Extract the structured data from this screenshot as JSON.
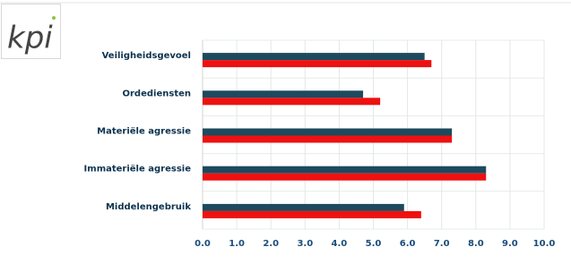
{
  "logo": "kpi",
  "chart_data": {
    "type": "hbar",
    "categories": [
      "Veiligheidsgevoel",
      "Ordediensten",
      "Materiële agressie",
      "Immateriële agressie",
      "Middelengebruik"
    ],
    "series": [
      {
        "color": "#1d4a5e",
        "values": [
          6.5,
          4.7,
          7.3,
          8.3,
          5.9
        ]
      },
      {
        "color": "#ee1111",
        "values": [
          6.7,
          5.2,
          7.3,
          8.3,
          6.4
        ]
      }
    ],
    "xlim": [
      0,
      10
    ],
    "xticks": [
      {
        "value": 0,
        "label": "0.0"
      },
      {
        "value": 1,
        "label": "1.0"
      },
      {
        "value": 2,
        "label": "2.0"
      },
      {
        "value": 3,
        "label": "3.0"
      },
      {
        "value": 4,
        "label": "4.0"
      },
      {
        "value": 5,
        "label": "5.0"
      },
      {
        "value": 6,
        "label": "6.0"
      },
      {
        "value": 7,
        "label": "7.0"
      },
      {
        "value": 8,
        "label": "8.0"
      },
      {
        "value": 9,
        "label": "9.0"
      },
      {
        "value": 10,
        "label": "10.0"
      }
    ],
    "grid": true
  }
}
